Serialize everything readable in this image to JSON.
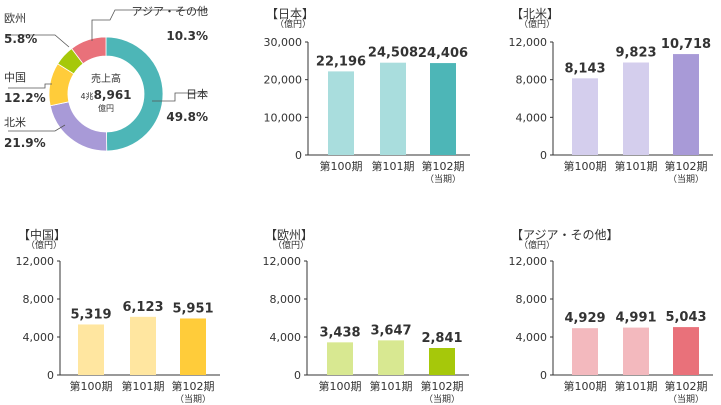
{
  "colors": {
    "japan": "#4DB6B7",
    "japan_light": "#A9DDDD",
    "na": "#A89AD7",
    "na_light": "#D4CEED",
    "china": "#FFCC3A",
    "china_light": "#FFE6A0",
    "europe": "#A6C80A",
    "europe_light": "#D8E891",
    "asia": "#E9717A",
    "asia_light": "#F3B9BE",
    "axis": "#333333"
  },
  "donut": {
    "center_line1": "売上高",
    "center_amount_prefix": "4兆",
    "center_amount": "8,961",
    "center_unit": "億円",
    "slices": [
      {
        "key": "japan",
        "label": "日本",
        "pct_label": "49.8%",
        "value": 49.8
      },
      {
        "key": "na",
        "label": "北米",
        "pct_label": "21.9%",
        "value": 21.9
      },
      {
        "key": "china",
        "label": "中国",
        "pct_label": "12.2%",
        "value": 12.2
      },
      {
        "key": "europe",
        "label": "欧州",
        "pct_label": "5.8%",
        "value": 5.8
      },
      {
        "key": "asia",
        "label": "アジア・その他",
        "pct_label": "10.3%",
        "value": 10.3
      }
    ]
  },
  "chart_data": [
    {
      "type": "bar",
      "title": "【日本】",
      "ylabel": "（億円）",
      "colorKey": "japan",
      "categories": [
        "第100期",
        "第101期",
        "第102期"
      ],
      "values": [
        22196,
        24508,
        24406
      ],
      "value_labels": [
        "22,196",
        "24,508",
        "24,406"
      ],
      "category_sub": [
        "",
        "",
        "（当期）"
      ],
      "ylim": [
        0,
        30000
      ],
      "yticks": [
        0,
        10000,
        20000,
        30000
      ],
      "ytick_labels": [
        "0",
        "10,000",
        "20,000",
        "30,000"
      ]
    },
    {
      "type": "bar",
      "title": "【北米】",
      "ylabel": "（億円）",
      "colorKey": "na",
      "categories": [
        "第100期",
        "第101期",
        "第102期"
      ],
      "values": [
        8143,
        9823,
        10718
      ],
      "value_labels": [
        "8,143",
        "9,823",
        "10,718"
      ],
      "category_sub": [
        "",
        "",
        "（当期）"
      ],
      "ylim": [
        0,
        12000
      ],
      "yticks": [
        0,
        4000,
        8000,
        12000
      ],
      "ytick_labels": [
        "0",
        "4,000",
        "8,000",
        "12,000"
      ]
    },
    {
      "type": "bar",
      "title": "【中国】",
      "ylabel": "（億円）",
      "colorKey": "china",
      "categories": [
        "第100期",
        "第101期",
        "第102期"
      ],
      "values": [
        5319,
        6123,
        5951
      ],
      "value_labels": [
        "5,319",
        "6,123",
        "5,951"
      ],
      "category_sub": [
        "",
        "",
        "（当期）"
      ],
      "ylim": [
        0,
        12000
      ],
      "yticks": [
        0,
        4000,
        8000,
        12000
      ],
      "ytick_labels": [
        "0",
        "4,000",
        "8,000",
        "12,000"
      ]
    },
    {
      "type": "bar",
      "title": "【欧州】",
      "ylabel": "（億円）",
      "colorKey": "europe",
      "categories": [
        "第100期",
        "第101期",
        "第102期"
      ],
      "values": [
        3438,
        3647,
        2841
      ],
      "value_labels": [
        "3,438",
        "3,647",
        "2,841"
      ],
      "category_sub": [
        "",
        "",
        "（当期）"
      ],
      "ylim": [
        0,
        12000
      ],
      "yticks": [
        0,
        4000,
        8000,
        12000
      ],
      "ytick_labels": [
        "0",
        "4,000",
        "8,000",
        "12,000"
      ]
    },
    {
      "type": "bar",
      "title": "【アジア・その他】",
      "ylabel": "（億円）",
      "colorKey": "asia",
      "categories": [
        "第100期",
        "第101期",
        "第102期"
      ],
      "values": [
        4929,
        4991,
        5043
      ],
      "value_labels": [
        "4,929",
        "4,991",
        "5,043"
      ],
      "category_sub": [
        "",
        "",
        "（当期）"
      ],
      "ylim": [
        0,
        12000
      ],
      "yticks": [
        0,
        4000,
        8000,
        12000
      ],
      "ytick_labels": [
        "0",
        "4,000",
        "8,000",
        "12,000"
      ]
    }
  ]
}
